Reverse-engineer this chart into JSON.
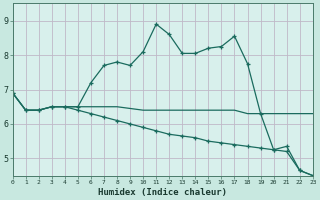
{
  "xlabel": "Humidex (Indice chaleur)",
  "ylabel": "",
  "plot_bg_color": "#d8f0ec",
  "fig_bg_color": "#c8e8e0",
  "grid_color": "#c0b8c8",
  "line_color": "#1a6b5e",
  "x_data": [
    0,
    1,
    2,
    3,
    4,
    5,
    6,
    7,
    8,
    9,
    10,
    11,
    12,
    13,
    14,
    15,
    16,
    17,
    18,
    19,
    20,
    21,
    22,
    23
  ],
  "line1_y": [
    6.9,
    6.4,
    6.4,
    6.5,
    6.5,
    6.5,
    7.2,
    7.7,
    7.8,
    7.7,
    8.1,
    8.9,
    8.6,
    8.05,
    8.05,
    8.2,
    8.25,
    8.55,
    7.75,
    6.3,
    5.25,
    5.35,
    4.65,
    4.5
  ],
  "line2_y": [
    6.9,
    6.4,
    6.4,
    6.5,
    6.5,
    6.4,
    6.3,
    6.2,
    6.1,
    6.0,
    5.9,
    5.8,
    5.7,
    5.65,
    5.6,
    5.5,
    5.45,
    5.4,
    5.35,
    5.3,
    5.25,
    5.2,
    4.65,
    4.5
  ],
  "line3_y": [
    6.9,
    6.4,
    6.4,
    6.5,
    6.5,
    6.5,
    6.5,
    6.5,
    6.5,
    6.45,
    6.4,
    6.4,
    6.4,
    6.4,
    6.4,
    6.4,
    6.4,
    6.4,
    6.3,
    6.3,
    6.3,
    6.3,
    6.3,
    6.3
  ],
  "ylim": [
    4.5,
    9.5
  ],
  "xlim": [
    0,
    23
  ],
  "yticks": [
    5,
    6,
    7,
    8,
    9
  ],
  "xticks": [
    0,
    1,
    2,
    3,
    4,
    5,
    6,
    7,
    8,
    9,
    10,
    11,
    12,
    13,
    14,
    15,
    16,
    17,
    18,
    19,
    20,
    21,
    22,
    23
  ],
  "figsize": [
    3.2,
    2.0
  ],
  "dpi": 100
}
